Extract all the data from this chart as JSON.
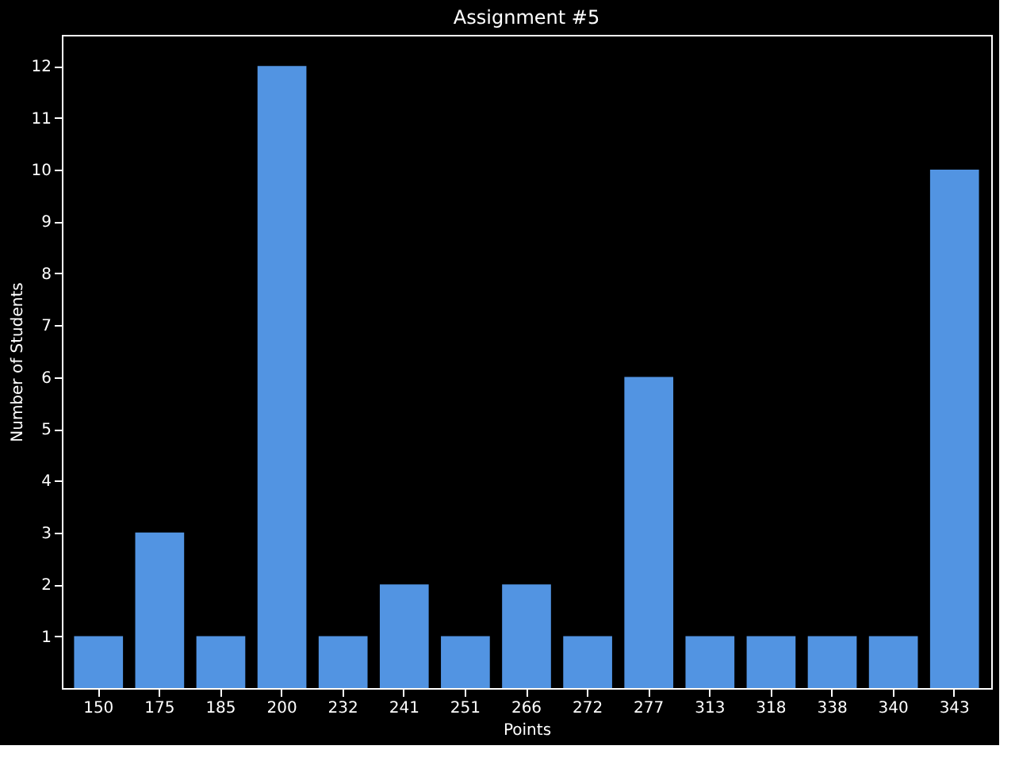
{
  "chart_data": {
    "type": "bar",
    "title": "Assignment #5",
    "xlabel": "Points",
    "ylabel": "Number of Students",
    "categories": [
      "150",
      "175",
      "185",
      "200",
      "232",
      "241",
      "251",
      "266",
      "272",
      "277",
      "313",
      "318",
      "338",
      "340",
      "343"
    ],
    "values": [
      1,
      3,
      1,
      12,
      1,
      2,
      1,
      2,
      1,
      6,
      1,
      1,
      1,
      1,
      10
    ],
    "color": "#5294e2",
    "ylim": [
      0,
      12.6
    ],
    "yticks": [
      1,
      2,
      3,
      4,
      5,
      6,
      7,
      8,
      9,
      10,
      11,
      12
    ],
    "grid": false
  }
}
